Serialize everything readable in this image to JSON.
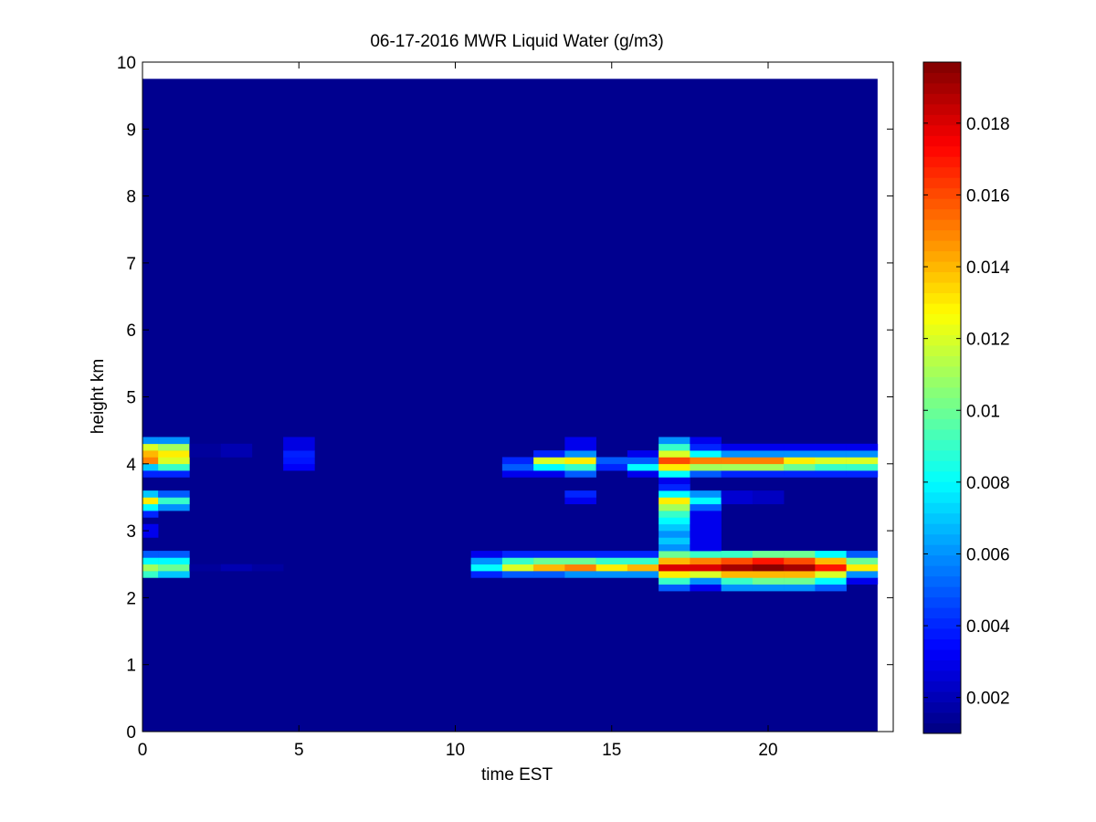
{
  "chart_data": {
    "type": "heatmap",
    "title": "06-17-2016 MWR Liquid Water (g/m3)",
    "xlabel": "time EST",
    "ylabel": "height km",
    "xlim": [
      0,
      24
    ],
    "ylim": [
      0,
      10
    ],
    "xticks": [
      "0",
      "5",
      "10",
      "15",
      "20"
    ],
    "yticks": [
      "0",
      "1",
      "2",
      "3",
      "4",
      "5",
      "6",
      "7",
      "8",
      "9",
      "10"
    ],
    "colormap": "jet",
    "background_color": "#00008f",
    "colorbar": {
      "range": [
        0.001,
        0.0197
      ],
      "ticks": [
        "0.002",
        "0.004",
        "0.006",
        "0.008",
        "0.01",
        "0.012",
        "0.014",
        "0.016",
        "0.018"
      ]
    },
    "time_edges": [
      0,
      0.5,
      1.5,
      2.5,
      3.5,
      4.5,
      5.5,
      10.5,
      11.5,
      12.5,
      13.5,
      14.5,
      15.5,
      16.5,
      17.5,
      18.5,
      19.5,
      20.5,
      21.5,
      22.5,
      23.5
    ],
    "cells": [
      [
        0,
        0.5,
        2.3,
        2.4,
        0.009
      ],
      [
        0,
        0.5,
        2.4,
        2.5,
        0.011
      ],
      [
        0,
        0.5,
        2.5,
        2.6,
        0.008
      ],
      [
        0,
        0.5,
        2.6,
        2.7,
        0.005
      ],
      [
        0,
        0.5,
        2.9,
        3.1,
        0.003
      ],
      [
        0,
        0.5,
        3.2,
        3.3,
        0.004
      ],
      [
        0,
        0.5,
        3.3,
        3.4,
        0.008
      ],
      [
        0,
        0.5,
        3.4,
        3.5,
        0.013
      ],
      [
        0,
        0.5,
        3.5,
        3.6,
        0.007
      ],
      [
        0,
        0.5,
        3.8,
        3.9,
        0.004
      ],
      [
        0,
        0.5,
        3.9,
        4.0,
        0.007
      ],
      [
        0,
        0.5,
        4.0,
        4.1,
        0.015
      ],
      [
        0,
        0.5,
        4.1,
        4.2,
        0.014
      ],
      [
        0,
        0.5,
        4.2,
        4.3,
        0.012
      ],
      [
        0,
        0.5,
        4.3,
        4.4,
        0.006
      ],
      [
        0.5,
        1.5,
        2.3,
        2.4,
        0.007
      ],
      [
        0.5,
        1.5,
        2.4,
        2.5,
        0.01
      ],
      [
        0.5,
        1.5,
        2.5,
        2.6,
        0.008
      ],
      [
        0.5,
        1.5,
        2.6,
        2.7,
        0.005
      ],
      [
        0.5,
        1.5,
        3.3,
        3.4,
        0.006
      ],
      [
        0.5,
        1.5,
        3.4,
        3.5,
        0.009
      ],
      [
        0.5,
        1.5,
        3.5,
        3.6,
        0.005
      ],
      [
        0.5,
        1.5,
        3.8,
        3.9,
        0.004
      ],
      [
        0.5,
        1.5,
        3.9,
        4.0,
        0.009
      ],
      [
        0.5,
        1.5,
        4.0,
        4.1,
        0.012
      ],
      [
        0.5,
        1.5,
        4.1,
        4.2,
        0.013
      ],
      [
        0.5,
        1.5,
        4.2,
        4.3,
        0.011
      ],
      [
        0.5,
        1.5,
        4.3,
        4.4,
        0.006
      ],
      [
        1.5,
        2.5,
        2.4,
        2.5,
        0.0015
      ],
      [
        1.5,
        2.5,
        4.1,
        4.3,
        0.0015
      ],
      [
        2.5,
        3.5,
        2.4,
        2.5,
        0.0019
      ],
      [
        2.5,
        3.5,
        4.1,
        4.3,
        0.0019
      ],
      [
        3.5,
        4.5,
        2.4,
        2.5,
        0.0016
      ],
      [
        4.5,
        5.5,
        3.9,
        4.0,
        0.0032
      ],
      [
        4.5,
        5.5,
        4.0,
        4.1,
        0.0037
      ],
      [
        4.5,
        5.5,
        4.1,
        4.2,
        0.0039
      ],
      [
        4.5,
        5.5,
        4.2,
        4.4,
        0.0028
      ],
      [
        10.5,
        11.5,
        2.3,
        2.4,
        0.004
      ],
      [
        10.5,
        11.5,
        2.4,
        2.5,
        0.008
      ],
      [
        10.5,
        11.5,
        2.5,
        2.6,
        0.006
      ],
      [
        10.5,
        11.5,
        2.6,
        2.7,
        0.003
      ],
      [
        11.5,
        12.5,
        2.3,
        2.4,
        0.005
      ],
      [
        11.5,
        12.5,
        2.4,
        2.5,
        0.012
      ],
      [
        11.5,
        12.5,
        2.5,
        2.6,
        0.009
      ],
      [
        11.5,
        12.5,
        2.6,
        2.7,
        0.004
      ],
      [
        11.5,
        12.5,
        3.8,
        3.9,
        0.003
      ],
      [
        11.5,
        12.5,
        3.9,
        4.0,
        0.005
      ],
      [
        11.5,
        12.5,
        4.0,
        4.1,
        0.004
      ],
      [
        12.5,
        13.5,
        2.3,
        2.4,
        0.005
      ],
      [
        12.5,
        13.5,
        2.4,
        2.5,
        0.014
      ],
      [
        12.5,
        13.5,
        2.5,
        2.6,
        0.01
      ],
      [
        12.5,
        13.5,
        2.6,
        2.7,
        0.004
      ],
      [
        12.5,
        13.5,
        3.8,
        3.9,
        0.003
      ],
      [
        12.5,
        13.5,
        3.9,
        4.0,
        0.008
      ],
      [
        12.5,
        13.5,
        4.0,
        4.1,
        0.012
      ],
      [
        12.5,
        13.5,
        4.1,
        4.2,
        0.004
      ],
      [
        13.5,
        14.5,
        2.3,
        2.4,
        0.006
      ],
      [
        13.5,
        14.5,
        2.4,
        2.5,
        0.015
      ],
      [
        13.5,
        14.5,
        2.5,
        2.6,
        0.01
      ],
      [
        13.5,
        14.5,
        2.6,
        2.7,
        0.004
      ],
      [
        13.5,
        14.5,
        3.4,
        3.5,
        0.003
      ],
      [
        13.5,
        14.5,
        3.5,
        3.6,
        0.004
      ],
      [
        13.5,
        14.5,
        3.8,
        3.9,
        0.005
      ],
      [
        13.5,
        14.5,
        3.9,
        4.0,
        0.009
      ],
      [
        13.5,
        14.5,
        4.0,
        4.1,
        0.013
      ],
      [
        13.5,
        14.5,
        4.1,
        4.2,
        0.006
      ],
      [
        13.5,
        14.5,
        4.2,
        4.4,
        0.003
      ],
      [
        14.5,
        15.5,
        2.3,
        2.4,
        0.006
      ],
      [
        14.5,
        15.5,
        2.4,
        2.5,
        0.013
      ],
      [
        14.5,
        15.5,
        2.5,
        2.6,
        0.009
      ],
      [
        14.5,
        15.5,
        2.6,
        2.7,
        0.004
      ],
      [
        14.5,
        15.5,
        3.9,
        4.0,
        0.004
      ],
      [
        14.5,
        15.5,
        4.0,
        4.1,
        0.005
      ],
      [
        15.5,
        16.5,
        2.3,
        2.4,
        0.006
      ],
      [
        15.5,
        16.5,
        2.4,
        2.5,
        0.014
      ],
      [
        15.5,
        16.5,
        2.5,
        2.6,
        0.009
      ],
      [
        15.5,
        16.5,
        2.6,
        2.7,
        0.004
      ],
      [
        15.5,
        16.5,
        3.8,
        3.9,
        0.003
      ],
      [
        15.5,
        16.5,
        3.9,
        4.0,
        0.008
      ],
      [
        15.5,
        16.5,
        4.0,
        4.1,
        0.005
      ],
      [
        15.5,
        16.5,
        4.1,
        4.2,
        0.003
      ],
      [
        16.5,
        17.5,
        2.1,
        2.2,
        0.005
      ],
      [
        16.5,
        17.5,
        2.2,
        2.3,
        0.009
      ],
      [
        16.5,
        17.5,
        2.3,
        2.4,
        0.013
      ],
      [
        16.5,
        17.5,
        2.4,
        2.5,
        0.018
      ],
      [
        16.5,
        17.5,
        2.5,
        2.6,
        0.014
      ],
      [
        16.5,
        17.5,
        2.6,
        2.7,
        0.01
      ],
      [
        16.5,
        17.5,
        2.7,
        2.8,
        0.006
      ],
      [
        16.5,
        17.5,
        2.8,
        2.9,
        0.007
      ],
      [
        16.5,
        17.5,
        2.9,
        3.0,
        0.006
      ],
      [
        16.5,
        17.5,
        3.0,
        3.1,
        0.007
      ],
      [
        16.5,
        17.5,
        3.1,
        3.2,
        0.008
      ],
      [
        16.5,
        17.5,
        3.2,
        3.3,
        0.009
      ],
      [
        16.5,
        17.5,
        3.3,
        3.4,
        0.011
      ],
      [
        16.5,
        17.5,
        3.4,
        3.5,
        0.013
      ],
      [
        16.5,
        17.5,
        3.5,
        3.6,
        0.008
      ],
      [
        16.5,
        17.5,
        3.6,
        3.7,
        0.004
      ],
      [
        16.5,
        17.5,
        3.7,
        3.8,
        0.003
      ],
      [
        16.5,
        17.5,
        3.8,
        3.9,
        0.008
      ],
      [
        16.5,
        17.5,
        3.9,
        4.0,
        0.013
      ],
      [
        16.5,
        17.5,
        4.0,
        4.1,
        0.016
      ],
      [
        16.5,
        17.5,
        4.1,
        4.2,
        0.012
      ],
      [
        16.5,
        17.5,
        4.2,
        4.3,
        0.009
      ],
      [
        16.5,
        17.5,
        4.3,
        4.4,
        0.006
      ],
      [
        17.5,
        18.5,
        2.1,
        2.2,
        0.003
      ],
      [
        17.5,
        18.5,
        2.2,
        2.3,
        0.006
      ],
      [
        17.5,
        18.5,
        2.3,
        2.4,
        0.012
      ],
      [
        17.5,
        18.5,
        2.4,
        2.5,
        0.018
      ],
      [
        17.5,
        18.5,
        2.5,
        2.6,
        0.015
      ],
      [
        17.5,
        18.5,
        2.6,
        2.7,
        0.009
      ],
      [
        17.5,
        18.5,
        2.7,
        3.3,
        0.003
      ],
      [
        17.5,
        18.5,
        3.3,
        3.4,
        0.005
      ],
      [
        17.5,
        18.5,
        3.4,
        3.5,
        0.008
      ],
      [
        17.5,
        18.5,
        3.5,
        3.6,
        0.006
      ],
      [
        17.5,
        18.5,
        3.8,
        3.9,
        0.005
      ],
      [
        17.5,
        18.5,
        3.9,
        4.0,
        0.011
      ],
      [
        17.5,
        18.5,
        4.0,
        4.1,
        0.015
      ],
      [
        17.5,
        18.5,
        4.1,
        4.2,
        0.008
      ],
      [
        17.5,
        18.5,
        4.2,
        4.3,
        0.004
      ],
      [
        17.5,
        18.5,
        4.3,
        4.4,
        0.003
      ],
      [
        18.5,
        19.5,
        2.1,
        2.2,
        0.006
      ],
      [
        18.5,
        19.5,
        2.2,
        2.3,
        0.009
      ],
      [
        18.5,
        19.5,
        2.3,
        2.4,
        0.014
      ],
      [
        18.5,
        19.5,
        2.4,
        2.5,
        0.019
      ],
      [
        18.5,
        19.5,
        2.5,
        2.6,
        0.016
      ],
      [
        18.5,
        19.5,
        2.6,
        2.7,
        0.009
      ],
      [
        18.5,
        19.5,
        3.4,
        3.6,
        0.0025
      ],
      [
        18.5,
        19.5,
        3.8,
        3.9,
        0.004
      ],
      [
        18.5,
        19.5,
        3.9,
        4.0,
        0.011
      ],
      [
        18.5,
        19.5,
        4.0,
        4.1,
        0.015
      ],
      [
        18.5,
        19.5,
        4.1,
        4.2,
        0.006
      ],
      [
        18.5,
        19.5,
        4.2,
        4.3,
        0.003
      ],
      [
        19.5,
        20.5,
        2.1,
        2.2,
        0.006
      ],
      [
        19.5,
        20.5,
        2.2,
        2.3,
        0.01
      ],
      [
        19.5,
        20.5,
        2.3,
        2.4,
        0.014
      ],
      [
        19.5,
        20.5,
        2.4,
        2.5,
        0.0195
      ],
      [
        19.5,
        20.5,
        2.5,
        2.6,
        0.017
      ],
      [
        19.5,
        20.5,
        2.6,
        2.7,
        0.01
      ],
      [
        19.5,
        20.5,
        3.4,
        3.6,
        0.0022
      ],
      [
        19.5,
        20.5,
        3.8,
        3.9,
        0.004
      ],
      [
        19.5,
        20.5,
        3.9,
        4.0,
        0.011
      ],
      [
        19.5,
        20.5,
        4.0,
        4.1,
        0.015
      ],
      [
        19.5,
        20.5,
        4.1,
        4.2,
        0.006
      ],
      [
        19.5,
        20.5,
        4.2,
        4.3,
        0.003
      ],
      [
        20.5,
        21.5,
        2.1,
        2.2,
        0.006
      ],
      [
        20.5,
        21.5,
        2.2,
        2.3,
        0.01
      ],
      [
        20.5,
        21.5,
        2.3,
        2.4,
        0.014
      ],
      [
        20.5,
        21.5,
        2.4,
        2.5,
        0.019
      ],
      [
        20.5,
        21.5,
        2.5,
        2.6,
        0.016
      ],
      [
        20.5,
        21.5,
        2.6,
        2.7,
        0.01
      ],
      [
        20.5,
        21.5,
        3.8,
        3.9,
        0.004
      ],
      [
        20.5,
        21.5,
        3.9,
        4.0,
        0.01
      ],
      [
        20.5,
        21.5,
        4.0,
        4.1,
        0.013
      ],
      [
        20.5,
        21.5,
        4.1,
        4.2,
        0.006
      ],
      [
        20.5,
        21.5,
        4.2,
        4.3,
        0.003
      ],
      [
        21.5,
        22.5,
        2.1,
        2.2,
        0.005
      ],
      [
        21.5,
        22.5,
        2.2,
        2.3,
        0.008
      ],
      [
        21.5,
        22.5,
        2.3,
        2.4,
        0.012
      ],
      [
        21.5,
        22.5,
        2.4,
        2.5,
        0.017
      ],
      [
        21.5,
        22.5,
        2.5,
        2.6,
        0.014
      ],
      [
        21.5,
        22.5,
        2.6,
        2.7,
        0.008
      ],
      [
        21.5,
        22.5,
        3.8,
        3.9,
        0.004
      ],
      [
        21.5,
        22.5,
        3.9,
        4.0,
        0.009
      ],
      [
        21.5,
        22.5,
        4.0,
        4.1,
        0.012
      ],
      [
        21.5,
        22.5,
        4.1,
        4.2,
        0.006
      ],
      [
        21.5,
        22.5,
        4.2,
        4.3,
        0.003
      ],
      [
        22.5,
        23.5,
        2.2,
        2.3,
        0.003
      ],
      [
        22.5,
        23.5,
        2.3,
        2.4,
        0.006
      ],
      [
        22.5,
        23.5,
        2.4,
        2.5,
        0.013
      ],
      [
        22.5,
        23.5,
        2.5,
        2.6,
        0.01
      ],
      [
        22.5,
        23.5,
        2.6,
        2.7,
        0.005
      ],
      [
        22.5,
        23.5,
        3.8,
        3.9,
        0.004
      ],
      [
        22.5,
        23.5,
        3.9,
        4.0,
        0.009
      ],
      [
        22.5,
        23.5,
        4.0,
        4.1,
        0.012
      ],
      [
        22.5,
        23.5,
        4.1,
        4.2,
        0.006
      ],
      [
        22.5,
        23.5,
        4.2,
        4.3,
        0.003
      ]
    ]
  }
}
